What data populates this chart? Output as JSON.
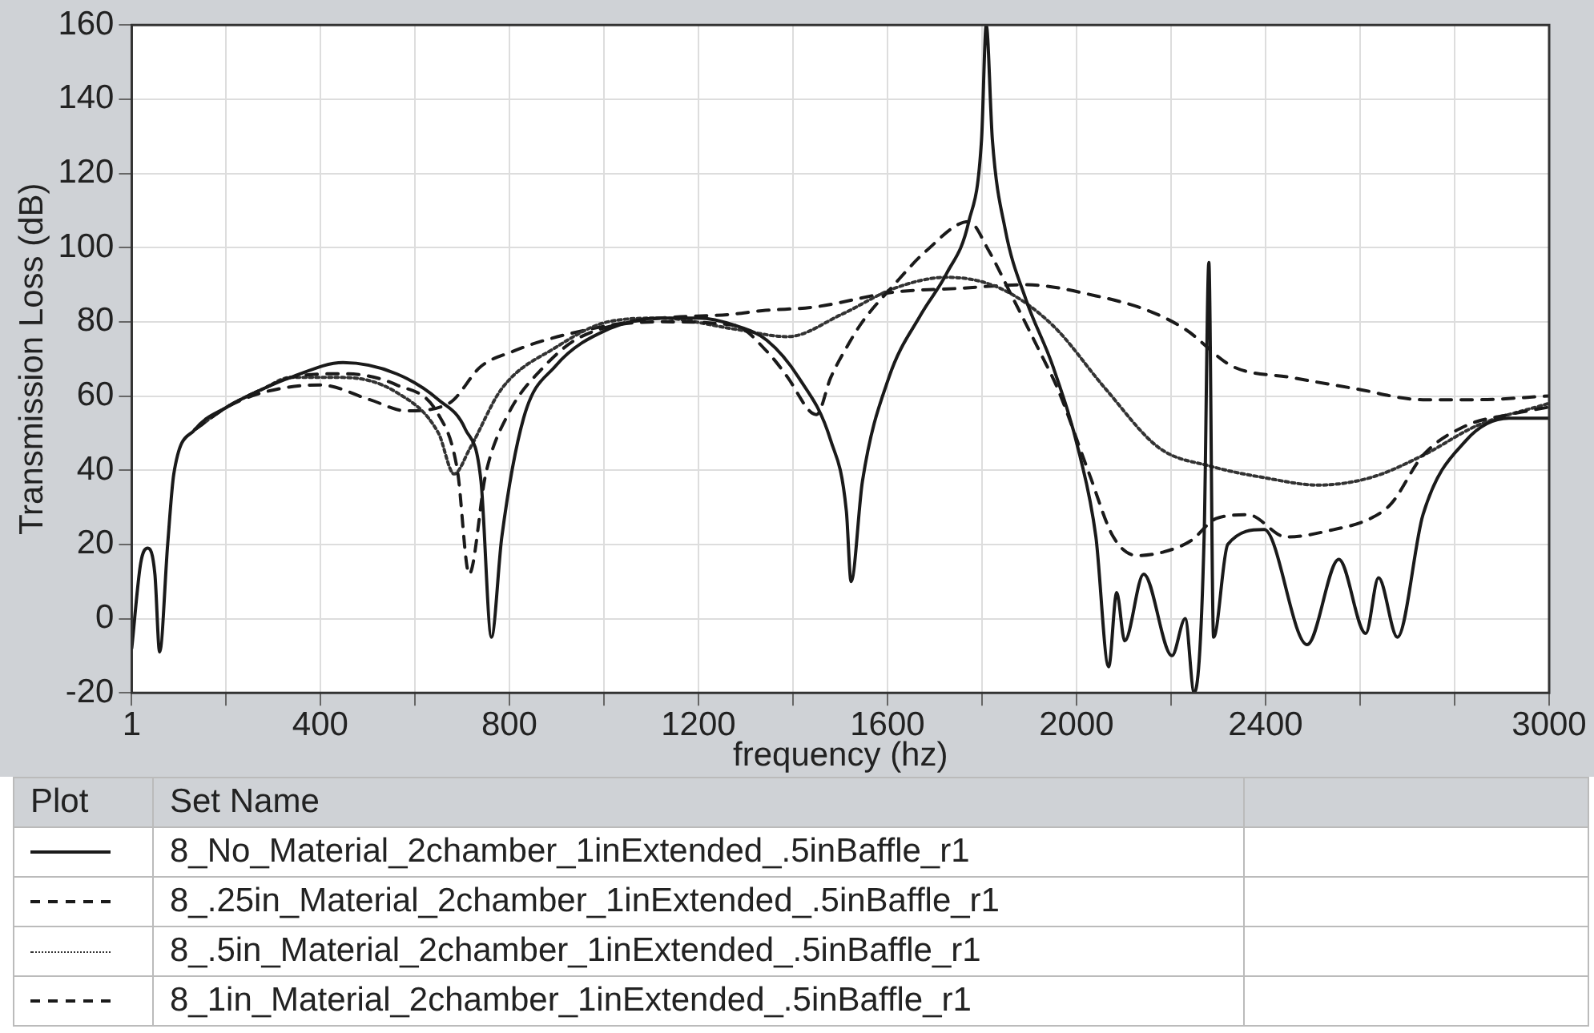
{
  "chart_data": {
    "type": "line",
    "xlabel": "frequency (hz)",
    "ylabel": "Transmission Loss (dB)",
    "legend_title": "Set Name",
    "annotations": [
      "Plot"
    ],
    "xlim": [
      1,
      3000
    ],
    "ylim": [
      -20,
      160
    ],
    "xticks": [
      1,
      {
        "value": 200,
        "label": null
      },
      400,
      {
        "value": 600,
        "label": null
      },
      800,
      {
        "value": 1000,
        "label": null
      },
      1200,
      {
        "value": 1400,
        "label": null
      },
      1600,
      {
        "value": 1800,
        "label": null
      },
      2000,
      {
        "value": 2200,
        "label": null
      },
      2400,
      {
        "value": 2600,
        "label": null
      },
      {
        "value": 2800,
        "label": null
      },
      3000
    ],
    "yticks": [
      -20,
      0,
      20,
      40,
      60,
      80,
      100,
      120,
      140,
      160
    ],
    "grid": true,
    "legend": "bottom",
    "marker": "none",
    "series": [
      {
        "name": "8_No_Material_2chamber_1inExtended_.5inBaffle_r1",
        "color": "#1a1a1a",
        "line_style": "solid",
        "x": [
          1,
          20,
          35,
          50,
          60,
          77,
          90,
          135,
          202,
          280,
          337,
          448,
          561,
          650,
          707,
          740,
          762,
          784,
          830,
          897,
          1009,
          1120,
          1200,
          1278,
          1345,
          1412,
          1480,
          1513,
          1523,
          1547,
          1603,
          1671,
          1725,
          1772,
          1799,
          1809,
          1822,
          1849,
          1893,
          1950,
          2007,
          2041,
          2068,
          2085,
          2102,
          2142,
          2202,
          2230,
          2249,
          2270,
          2280,
          2290,
          2320,
          2397,
          2488,
          2555,
          2612,
          2639,
          2679,
          2733,
          2824,
          2915,
          2999
        ],
        "values": [
          -8,
          15,
          19,
          12,
          -9,
          20,
          39,
          51,
          57,
          62,
          65,
          69,
          66,
          59,
          51,
          37,
          -5,
          22,
          54,
          68,
          78,
          81,
          81,
          79,
          75,
          65,
          48,
          29,
          10,
          37,
          65,
          82,
          93,
          107,
          129,
          160,
          129,
          105,
          86,
          68,
          44,
          22,
          -13,
          7,
          -6,
          12,
          -10,
          0,
          -20,
          22,
          96,
          -5,
          20,
          24,
          -7,
          16,
          -4,
          11,
          -5,
          28,
          48,
          54,
          54
        ]
      },
      {
        "name": "8_.25in_Material_2chamber_1inExtended_.5inBaffle_r1",
        "color": "#1a1a1a",
        "line_style": "dashed",
        "x": [
          135,
          202,
          280,
          337,
          448,
          561,
          650,
          690,
          715,
          750,
          797,
          874,
          952,
          1120,
          1278,
          1345,
          1389,
          1435,
          1450,
          1480,
          1513,
          1547,
          1614,
          1681,
          1772,
          1815,
          1859,
          1926,
          1960,
          2027,
          2078,
          2128,
          2185,
          2242,
          2296,
          2363,
          2444,
          2544,
          2622,
          2666,
          2733,
          2824,
          2915,
          2999
        ],
        "values": [
          51,
          57,
          62,
          65,
          66,
          63,
          55,
          40,
          12,
          39,
          55,
          68,
          76,
          80,
          79,
          72,
          65,
          56,
          55,
          65,
          73,
          80,
          90,
          99,
          107,
          99,
          88,
          71,
          62,
          39,
          22,
          17,
          18,
          21,
          27,
          28,
          22,
          24,
          27,
          31,
          44,
          52,
          55,
          57
        ]
      },
      {
        "name": "8_.5in_Material_2chamber_1inExtended_.5inBaffle_r1",
        "color": "#333333",
        "line_style": "dotted",
        "x": [
          135,
          202,
          280,
          337,
          448,
          561,
          650,
          683,
          717,
          784,
          897,
          1009,
          1120,
          1278,
          1389,
          1503,
          1614,
          1725,
          1839,
          1950,
          2061,
          2175,
          2286,
          2397,
          2511,
          2622,
          2733,
          2847,
          2999
        ],
        "values": [
          51,
          57,
          62,
          65,
          65,
          61,
          50,
          39,
          46,
          62,
          73,
          80,
          81,
          78,
          76,
          82,
          89,
          92,
          89,
          79,
          62,
          46,
          41,
          38,
          36,
          38,
          44,
          52,
          58
        ]
      },
      {
        "name": "8_1in_Material_2chamber_1inExtended_.5inBaffle_r1",
        "color": "#1a1a1a",
        "line_style": "dashed",
        "x": [
          135,
          202,
          280,
          400,
          505,
          582,
          672,
          740,
          807,
          874,
          1009,
          1120,
          1268,
          1335,
          1446,
          1614,
          1749,
          1893,
          2041,
          2152,
          2230,
          2330,
          2454,
          2589,
          2733,
          2847,
          2999
        ],
        "values": [
          51,
          57,
          61,
          63,
          59,
          56,
          58,
          68,
          72,
          75,
          79,
          81,
          82,
          83,
          84,
          88,
          89,
          90,
          87,
          83,
          78,
          68,
          65,
          62,
          59,
          59,
          60
        ]
      }
    ]
  }
}
